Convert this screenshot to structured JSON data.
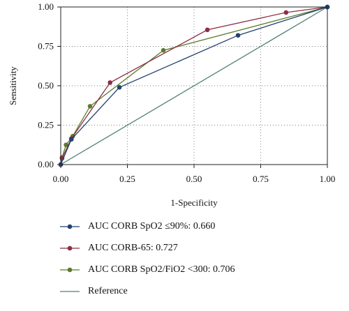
{
  "chart_data": {
    "type": "line",
    "xlabel": "1-Specificity",
    "ylabel": "Sensitivity",
    "xlim": [
      0,
      1
    ],
    "ylim": [
      0,
      1
    ],
    "xticks": [
      "0.00",
      "0.25",
      "0.50",
      "0.75",
      "1.00"
    ],
    "yticks": [
      "0.00",
      "0.25",
      "0.50",
      "0.75",
      "1.00"
    ],
    "grid": true,
    "legend_position": "bottom",
    "series": [
      {
        "name": "AUC CORB SpO2 ≤90%: 0.660",
        "color": "#22426e",
        "markers": true,
        "x": [
          0.0,
          0.04,
          0.22,
          0.665,
          1.0
        ],
        "y": [
          0.0,
          0.16,
          0.49,
          0.82,
          1.0
        ]
      },
      {
        "name": "AUC CORB-65: 0.727",
        "color": "#8c2f45",
        "markers": true,
        "x": [
          0.0,
          0.005,
          0.04,
          0.185,
          0.55,
          0.845,
          1.0
        ],
        "y": [
          0.0,
          0.04,
          0.165,
          0.52,
          0.855,
          0.965,
          1.0
        ]
      },
      {
        "name": "AUC CORB SpO2/FiO2 <300: 0.706",
        "color": "#5b7a2e",
        "markers": true,
        "x": [
          0.0,
          0.005,
          0.02,
          0.045,
          0.11,
          0.385,
          1.0
        ],
        "y": [
          0.0,
          0.045,
          0.125,
          0.18,
          0.37,
          0.725,
          1.0
        ]
      },
      {
        "name": "Reference",
        "color": "#4f8078",
        "markers": false,
        "x": [
          0.0,
          1.0
        ],
        "y": [
          0.0,
          1.0
        ]
      }
    ]
  }
}
